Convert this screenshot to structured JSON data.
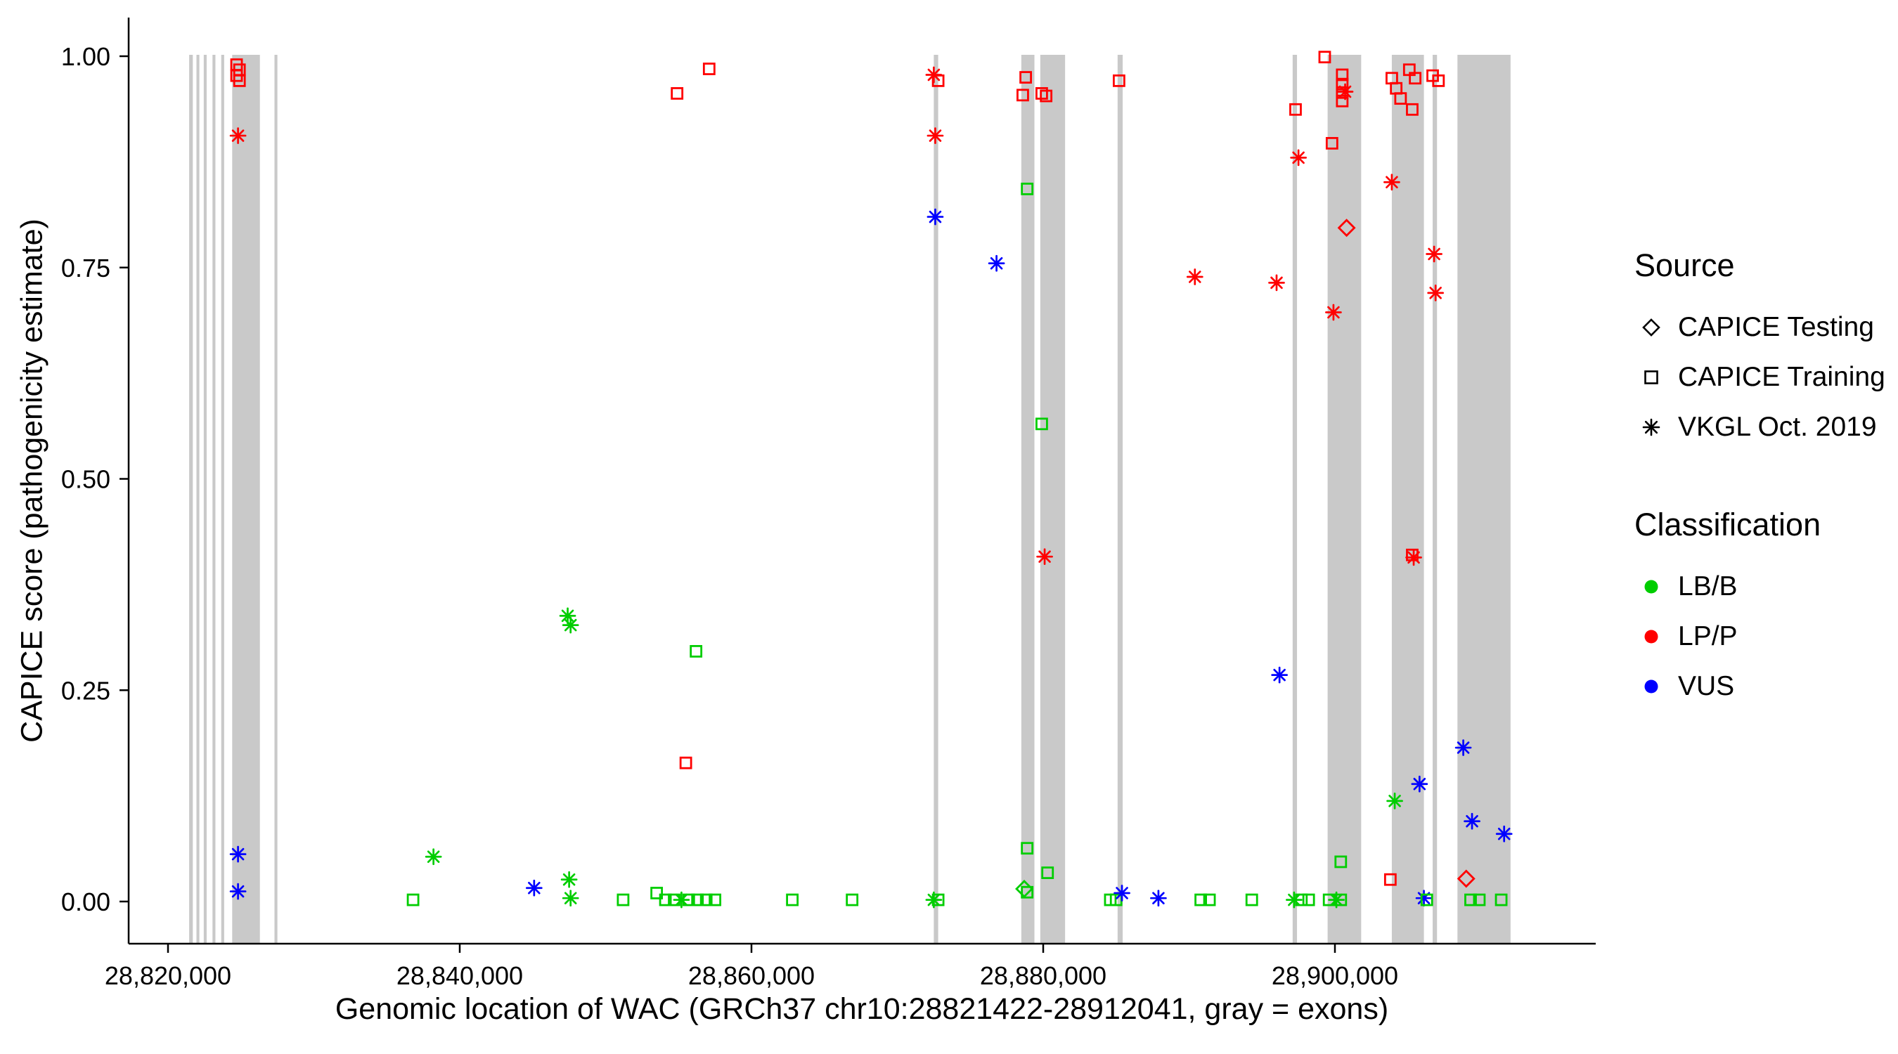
{
  "chart_data": {
    "type": "scatter",
    "title": "",
    "xlabel": "Genomic location of WAC (GRCh37 chr10:28821422-28912041, gray = exons)",
    "ylabel": "CAPICE score (pathogenicity estimate)",
    "x_ticks": [
      {
        "value": 28820000,
        "label": "28,820,000"
      },
      {
        "value": 28840000,
        "label": "28,840,000"
      },
      {
        "value": 28860000,
        "label": "28,860,000"
      },
      {
        "value": 28880000,
        "label": "28,880,000"
      },
      {
        "value": 28900000,
        "label": "28,900,000"
      }
    ],
    "y_ticks": [
      {
        "value": 0.0,
        "label": "0.00"
      },
      {
        "value": 0.25,
        "label": "0.25"
      },
      {
        "value": 0.5,
        "label": "0.50"
      },
      {
        "value": 0.75,
        "label": "0.75"
      },
      {
        "value": 1.0,
        "label": "1.00"
      }
    ],
    "ylim": [
      0,
      1
    ],
    "gene_region_note": "gray = exons",
    "exon_color": "#c9c9c9",
    "classification_colors": {
      "LB/B": "#00CD00",
      "LP/P": "#FF0000",
      "VUS": "#0000FF"
    },
    "source_shapes": {
      "testing": "diamond",
      "training": "square",
      "vkgl": "asterisk"
    },
    "source_labels": {
      "testing": "CAPICE Testing",
      "training": "CAPICE Training",
      "vkgl": "VKGL Oct. 2019"
    },
    "exons": [
      [
        28821450,
        28821700
      ],
      [
        28821950,
        28822150
      ],
      [
        28822450,
        28822650
      ],
      [
        28823050,
        28823250
      ],
      [
        28823650,
        28823850
      ],
      [
        28824400,
        28826300
      ],
      [
        28827300,
        28827500
      ],
      [
        28872500,
        28872800
      ],
      [
        28878500,
        28879400
      ],
      [
        28879800,
        28881500
      ],
      [
        28885100,
        28885450
      ],
      [
        28897100,
        28897400
      ],
      [
        28899500,
        28901800
      ],
      [
        28903900,
        28906100
      ],
      [
        28906700,
        28907000
      ],
      [
        28908400,
        28912041
      ]
    ],
    "point_fields": [
      "genomic_position",
      "capice_score",
      "classification",
      "source"
    ],
    "points": [
      [
        28824700,
        0.99,
        "LP/P",
        "training"
      ],
      [
        28824900,
        0.984,
        "LP/P",
        "training"
      ],
      [
        28824700,
        0.977,
        "LP/P",
        "training"
      ],
      [
        28824900,
        0.971,
        "LP/P",
        "training"
      ],
      [
        28824800,
        0.906,
        "LP/P",
        "vkgl"
      ],
      [
        28824800,
        0.056,
        "VUS",
        "vkgl"
      ],
      [
        28824800,
        0.012,
        "VUS",
        "vkgl"
      ],
      [
        28836800,
        0.002,
        "LB/B",
        "training"
      ],
      [
        28838200,
        0.053,
        "LB/B",
        "vkgl"
      ],
      [
        28845100,
        0.016,
        "VUS",
        "vkgl"
      ],
      [
        28847400,
        0.338,
        "LB/B",
        "vkgl"
      ],
      [
        28847600,
        0.327,
        "LB/B",
        "vkgl"
      ],
      [
        28847500,
        0.026,
        "LB/B",
        "vkgl"
      ],
      [
        28847600,
        0.004,
        "LB/B",
        "vkgl"
      ],
      [
        28851200,
        0.002,
        "LB/B",
        "training"
      ],
      [
        28853500,
        0.01,
        "LB/B",
        "training"
      ],
      [
        28854100,
        0.002,
        "LB/B",
        "training"
      ],
      [
        28854700,
        0.002,
        "LB/B",
        "training"
      ],
      [
        28855200,
        0.002,
        "LB/B",
        "vkgl"
      ],
      [
        28855700,
        0.002,
        "LB/B",
        "training"
      ],
      [
        28856300,
        0.002,
        "LB/B",
        "training"
      ],
      [
        28856900,
        0.002,
        "LB/B",
        "training"
      ],
      [
        28857500,
        0.002,
        "LB/B",
        "training"
      ],
      [
        28854900,
        0.956,
        "LP/P",
        "training"
      ],
      [
        28857100,
        0.985,
        "LP/P",
        "training"
      ],
      [
        28855500,
        0.164,
        "LP/P",
        "training"
      ],
      [
        28856200,
        0.296,
        "LB/B",
        "training"
      ],
      [
        28862800,
        0.002,
        "LB/B",
        "training"
      ],
      [
        28866900,
        0.002,
        "LB/B",
        "training"
      ],
      [
        28872500,
        0.978,
        "LP/P",
        "vkgl"
      ],
      [
        28872800,
        0.971,
        "LP/P",
        "training"
      ],
      [
        28872600,
        0.906,
        "LP/P",
        "vkgl"
      ],
      [
        28872600,
        0.81,
        "VUS",
        "vkgl"
      ],
      [
        28872500,
        0.002,
        "LB/B",
        "vkgl"
      ],
      [
        28872800,
        0.002,
        "LB/B",
        "training"
      ],
      [
        28876800,
        0.755,
        "VUS",
        "vkgl"
      ],
      [
        28878800,
        0.975,
        "LP/P",
        "training"
      ],
      [
        28878600,
        0.954,
        "LP/P",
        "training"
      ],
      [
        28879900,
        0.956,
        "LP/P",
        "training"
      ],
      [
        28880200,
        0.953,
        "LP/P",
        "training"
      ],
      [
        28878900,
        0.843,
        "LB/B",
        "training"
      ],
      [
        28879900,
        0.565,
        "LB/B",
        "training"
      ],
      [
        28880100,
        0.408,
        "LP/P",
        "vkgl"
      ],
      [
        28878900,
        0.063,
        "LB/B",
        "training"
      ],
      [
        28880300,
        0.034,
        "LB/B",
        "training"
      ],
      [
        28878700,
        0.015,
        "LB/B",
        "testing"
      ],
      [
        28878900,
        0.011,
        "LB/B",
        "training"
      ],
      [
        28885200,
        0.971,
        "LP/P",
        "training"
      ],
      [
        28884600,
        0.002,
        "LB/B",
        "training"
      ],
      [
        28885000,
        0.002,
        "LB/B",
        "training"
      ],
      [
        28885400,
        0.01,
        "VUS",
        "vkgl"
      ],
      [
        28887900,
        0.004,
        "VUS",
        "vkgl"
      ],
      [
        28890400,
        0.739,
        "LP/P",
        "vkgl"
      ],
      [
        28890800,
        0.002,
        "LB/B",
        "training"
      ],
      [
        28891400,
        0.002,
        "LB/B",
        "training"
      ],
      [
        28894300,
        0.002,
        "LB/B",
        "training"
      ],
      [
        28896000,
        0.732,
        "LP/P",
        "vkgl"
      ],
      [
        28896200,
        0.268,
        "VUS",
        "vkgl"
      ],
      [
        28897300,
        0.937,
        "LP/P",
        "training"
      ],
      [
        28897500,
        0.88,
        "LP/P",
        "vkgl"
      ],
      [
        28897200,
        0.002,
        "LB/B",
        "vkgl"
      ],
      [
        28897700,
        0.002,
        "LB/B",
        "training"
      ],
      [
        28898200,
        0.002,
        "LB/B",
        "training"
      ],
      [
        28899300,
        0.999,
        "LP/P",
        "training"
      ],
      [
        28899800,
        0.897,
        "LP/P",
        "training"
      ],
      [
        28899900,
        0.697,
        "LP/P",
        "vkgl"
      ],
      [
        28900500,
        0.978,
        "LP/P",
        "training"
      ],
      [
        28900500,
        0.967,
        "LP/P",
        "training"
      ],
      [
        28900500,
        0.957,
        "LP/P",
        "training"
      ],
      [
        28900500,
        0.947,
        "LP/P",
        "training"
      ],
      [
        28900700,
        0.958,
        "LP/P",
        "vkgl"
      ],
      [
        28900800,
        0.797,
        "LP/P",
        "testing"
      ],
      [
        28900400,
        0.047,
        "LB/B",
        "training"
      ],
      [
        28899600,
        0.002,
        "LB/B",
        "training"
      ],
      [
        28900100,
        0.002,
        "LB/B",
        "vkgl"
      ],
      [
        28900400,
        0.002,
        "LB/B",
        "training"
      ],
      [
        28903900,
        0.851,
        "LP/P",
        "vkgl"
      ],
      [
        28904100,
        0.119,
        "LB/B",
        "vkgl"
      ],
      [
        28903800,
        0.026,
        "LP/P",
        "training"
      ],
      [
        28903900,
        0.974,
        "LP/P",
        "training"
      ],
      [
        28904200,
        0.962,
        "LP/P",
        "training"
      ],
      [
        28904500,
        0.95,
        "LP/P",
        "training"
      ],
      [
        28905300,
        0.41,
        "LP/P",
        "training"
      ],
      [
        28905400,
        0.407,
        "LP/P",
        "vkgl"
      ],
      [
        28905100,
        0.984,
        "LP/P",
        "training"
      ],
      [
        28905500,
        0.974,
        "LP/P",
        "training"
      ],
      [
        28905300,
        0.937,
        "LP/P",
        "training"
      ],
      [
        28905800,
        0.139,
        "VUS",
        "vkgl"
      ],
      [
        28906100,
        0.004,
        "VUS",
        "vkgl"
      ],
      [
        28906300,
        0.002,
        "LB/B",
        "training"
      ],
      [
        28906800,
        0.766,
        "LP/P",
        "vkgl"
      ],
      [
        28906900,
        0.72,
        "LP/P",
        "vkgl"
      ],
      [
        28906700,
        0.977,
        "LP/P",
        "training"
      ],
      [
        28907100,
        0.971,
        "LP/P",
        "training"
      ],
      [
        28908800,
        0.182,
        "VUS",
        "vkgl"
      ],
      [
        28909400,
        0.095,
        "VUS",
        "vkgl"
      ],
      [
        28909000,
        0.027,
        "LP/P",
        "testing"
      ],
      [
        28909300,
        0.002,
        "LB/B",
        "training"
      ],
      [
        28909900,
        0.002,
        "LB/B",
        "training"
      ],
      [
        28911600,
        0.08,
        "VUS",
        "vkgl"
      ],
      [
        28911400,
        0.002,
        "LB/B",
        "training"
      ]
    ]
  },
  "legend": {
    "source_title": "Source",
    "source_items": [
      {
        "label": "CAPICE Testing",
        "shape": "diamond"
      },
      {
        "label": "CAPICE Training",
        "shape": "square"
      },
      {
        "label": "VKGL Oct. 2019",
        "shape": "asterisk"
      }
    ],
    "classification_title": "Classification",
    "classification_items": [
      {
        "label": "LB/B",
        "color": "#00CD00"
      },
      {
        "label": "LP/P",
        "color": "#FF0000"
      },
      {
        "label": "VUS",
        "color": "#0000FF"
      }
    ]
  }
}
